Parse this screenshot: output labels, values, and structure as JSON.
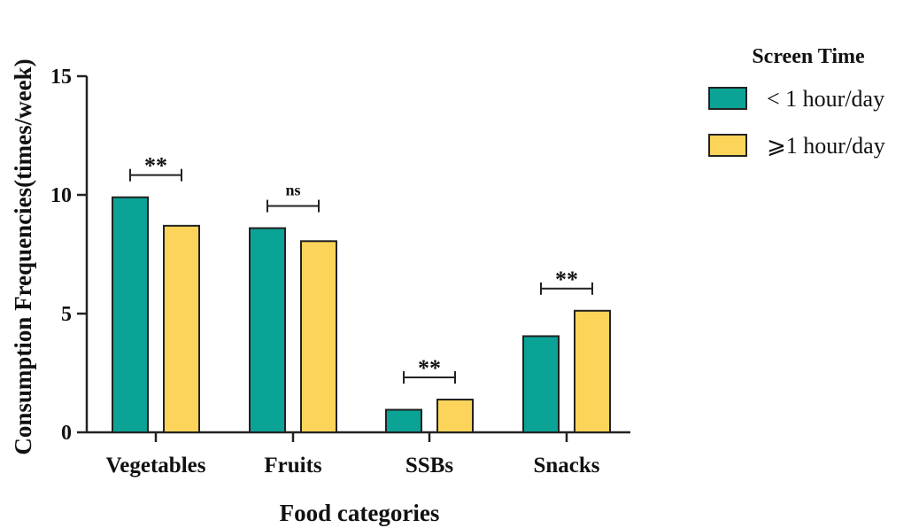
{
  "chart_data": {
    "type": "bar",
    "categories": [
      "Vegetables",
      "Fruits",
      "SSBs",
      "Snacks"
    ],
    "series": [
      {
        "name": "< 1 hour/day",
        "color": "#0aa396",
        "values": [
          9.9,
          8.6,
          0.95,
          4.05
        ]
      },
      {
        "name": "⩾1 hour/day",
        "color": "#fdd45a",
        "values": [
          8.7,
          8.05,
          1.38,
          5.12
        ]
      }
    ],
    "significance": [
      "**",
      "ns",
      "**",
      "**"
    ],
    "xlabel": "Food categories",
    "ylabel": "Consumption Frequencies(times/week)",
    "ylim": [
      0,
      15
    ],
    "yticks": [
      "0",
      "5",
      "10",
      "15"
    ],
    "grid": false,
    "legend": {
      "title": "Screen Time",
      "placement": "top-right"
    }
  }
}
